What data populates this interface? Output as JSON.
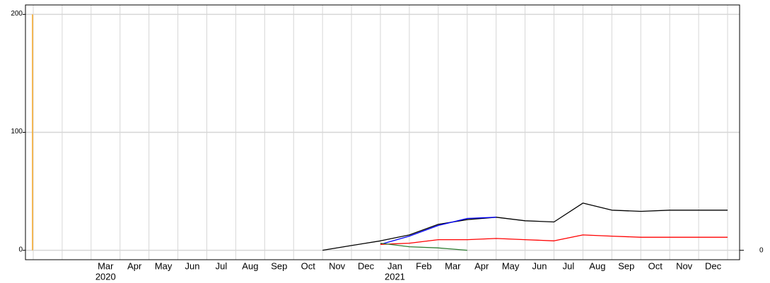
{
  "chart_data": {
    "type": "line",
    "x": [
      "2020-01",
      "2020-02",
      "2020-03",
      "2020-04",
      "2020-05",
      "2020-06",
      "2020-07",
      "2020-08",
      "2020-09",
      "2020-10",
      "2020-11",
      "2020-12",
      "2021-01",
      "2021-02",
      "2021-03",
      "2021-04",
      "2021-05",
      "2021-06",
      "2021-07",
      "2021-08",
      "2021-09",
      "2021-10",
      "2021-11",
      "2021-12",
      "2022-01"
    ],
    "series": [
      {
        "color": "#f5a623",
        "values": [
          200,
          null,
          null,
          null,
          null,
          null,
          null,
          null,
          null,
          null,
          null,
          null,
          null,
          null,
          null,
          null,
          null,
          null,
          null,
          null,
          null,
          null,
          null,
          null,
          null
        ]
      },
      {
        "color": "#000000",
        "values": [
          null,
          null,
          null,
          null,
          null,
          null,
          null,
          null,
          null,
          null,
          0,
          4,
          8,
          13,
          22,
          26,
          28,
          25,
          24,
          40,
          34,
          33,
          34,
          34,
          34
        ]
      },
      {
        "color": "#0000ff",
        "values": [
          null,
          null,
          null,
          null,
          null,
          null,
          null,
          null,
          null,
          null,
          null,
          null,
          5,
          12,
          21,
          27,
          28,
          null,
          null,
          null,
          null,
          null,
          null,
          null,
          null
        ]
      },
      {
        "color": "#ff0000",
        "values": [
          null,
          null,
          null,
          null,
          null,
          null,
          null,
          null,
          null,
          null,
          null,
          null,
          5,
          6,
          9,
          9,
          10,
          9,
          8,
          13,
          12,
          11,
          11,
          11,
          11
        ]
      },
      {
        "color": "#2e7d32",
        "values": [
          null,
          null,
          null,
          null,
          null,
          null,
          null,
          null,
          null,
          null,
          null,
          null,
          6,
          3,
          2,
          0,
          null,
          null,
          null,
          null,
          null,
          null,
          null,
          null,
          null
        ]
      }
    ],
    "ylim": [
      -8,
      208
    ],
    "yticks": [
      0,
      100,
      200
    ],
    "y2lim": [
      -8,
      208
    ],
    "y2ticks": [
      0
    ],
    "xticks": [
      {
        "value": "2020-03",
        "label": "Mar"
      },
      {
        "value": "2020-04",
        "label": "Apr"
      },
      {
        "value": "2020-05",
        "label": "May"
      },
      {
        "value": "2020-06",
        "label": "Jun"
      },
      {
        "value": "2020-07",
        "label": "Jul"
      },
      {
        "value": "2020-08",
        "label": "Aug"
      },
      {
        "value": "2020-09",
        "label": "Sep"
      },
      {
        "value": "2020-10",
        "label": "Oct"
      },
      {
        "value": "2020-11",
        "label": "Nov"
      },
      {
        "value": "2020-12",
        "label": "Dec"
      },
      {
        "value": "2021-01",
        "label": "Jan"
      },
      {
        "value": "2021-02",
        "label": "Feb"
      },
      {
        "value": "2021-03",
        "label": "Mar"
      },
      {
        "value": "2021-04",
        "label": "Apr"
      },
      {
        "value": "2021-05",
        "label": "May"
      },
      {
        "value": "2021-06",
        "label": "Jun"
      },
      {
        "value": "2021-07",
        "label": "Jul"
      },
      {
        "value": "2021-08",
        "label": "Aug"
      },
      {
        "value": "2021-09",
        "label": "Sep"
      },
      {
        "value": "2021-10",
        "label": "Oct"
      },
      {
        "value": "2021-11",
        "label": "Nov"
      },
      {
        "value": "2021-12",
        "label": "Dec"
      }
    ],
    "xtick_years": [
      {
        "value": "2020-03",
        "label": "2020"
      },
      {
        "value": "2021-01",
        "label": "2021"
      }
    ],
    "grid": true
  }
}
